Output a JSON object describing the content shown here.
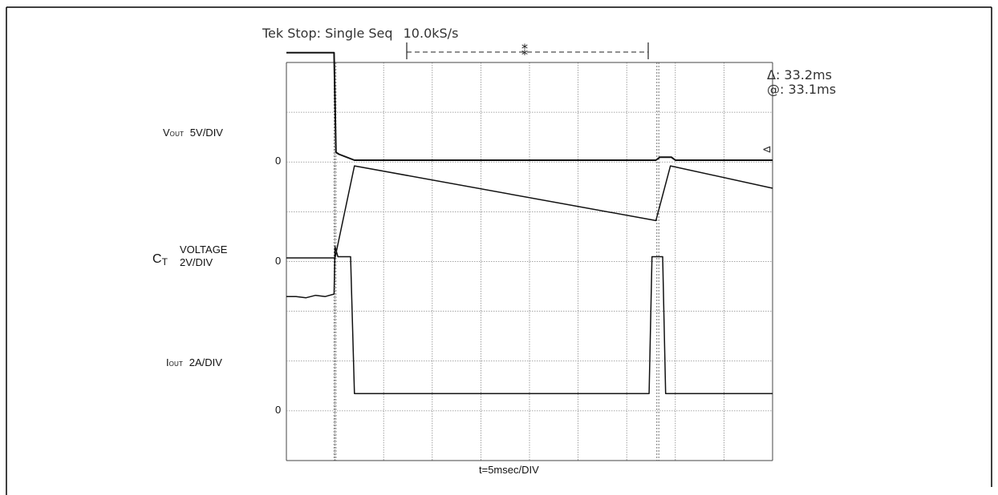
{
  "header": {
    "status": "Tek Stop: Single Seq",
    "rate": "10.0kS/s",
    "delta_readout": "Δ: 33.2ms",
    "at_readout": "@: 33.1ms"
  },
  "channels": {
    "vout": {
      "main": "V",
      "sub": "OUT",
      "scale": "5V/DIV",
      "zero": "0"
    },
    "ct": {
      "main": "C",
      "sub": "T",
      "title": "VOLTAGE",
      "scale": "2V/DIV",
      "zero": "0"
    },
    "iout": {
      "main": "I",
      "sub": "OUT",
      "scale": "2A/DIV",
      "zero": "0"
    }
  },
  "xlabel": "t=5msec/DIV",
  "chart_data": {
    "type": "line",
    "xlabel": "t=5msec/DIV",
    "x_unit": "ms",
    "xlim": [
      0,
      50
    ],
    "grid": true,
    "divisions": {
      "x": 10,
      "y": 8
    },
    "cursors_ms": [
      5,
      38.2
    ],
    "series": [
      {
        "name": "V",
        "scale": "5V/DIV",
        "unit": "V",
        "points": [
          [
            0,
            10.8
          ],
          [
            4.9,
            10.8
          ],
          [
            5.1,
            0.8
          ],
          [
            5.4,
            0.6
          ],
          [
            7,
            0
          ],
          [
            38,
            0
          ],
          [
            38.4,
            0.3
          ],
          [
            39.6,
            0.3
          ],
          [
            40,
            0
          ],
          [
            50,
            0
          ]
        ]
      },
      {
        "name": "C",
        "scale": "2V/DIV",
        "unit": "V",
        "points": [
          [
            0,
            0
          ],
          [
            5,
            0
          ],
          [
            7,
            3.7
          ],
          [
            38,
            1.5
          ],
          [
            39.5,
            3.7
          ],
          [
            50,
            2.8
          ]
        ]
      },
      {
        "name": "I",
        "scale": "2A/DIV",
        "unit": "A",
        "points": [
          [
            0,
            4.5
          ],
          [
            1,
            4.5
          ],
          [
            2,
            4.45
          ],
          [
            3,
            4.55
          ],
          [
            4,
            4.5
          ],
          [
            4.9,
            4.6
          ],
          [
            5,
            6.5
          ],
          [
            5.3,
            6.1
          ],
          [
            6.6,
            6.1
          ],
          [
            7,
            0.6
          ],
          [
            15,
            0.6
          ],
          [
            20,
            0.6
          ],
          [
            30,
            0.6
          ],
          [
            37.3,
            0.6
          ],
          [
            37.6,
            6.1
          ],
          [
            38.7,
            6.1
          ],
          [
            39,
            0.6
          ],
          [
            50,
            0.6
          ]
        ]
      }
    ]
  }
}
